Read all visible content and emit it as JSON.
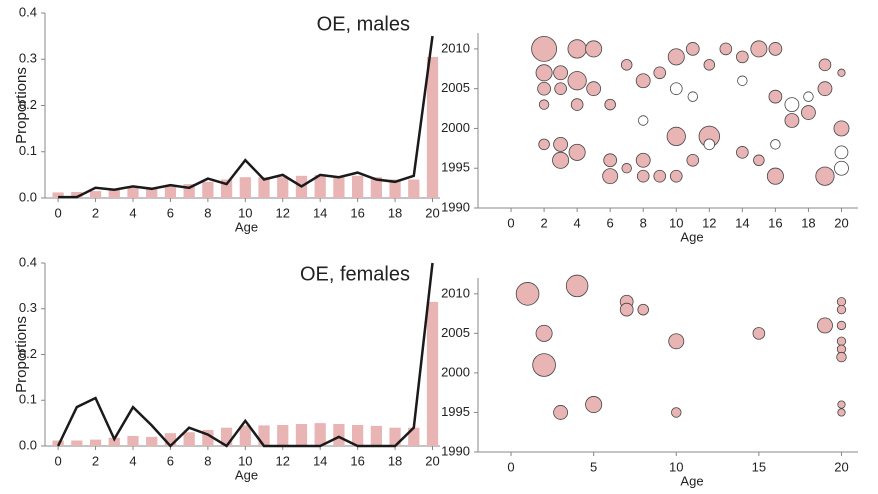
{
  "chart_data": [
    {
      "type": "bar",
      "annotation": "OE, males",
      "xlabel": "Age",
      "ylabel": "Proportions",
      "x": [
        0,
        1,
        2,
        3,
        4,
        5,
        6,
        7,
        8,
        9,
        10,
        11,
        12,
        13,
        14,
        15,
        16,
        17,
        18,
        19,
        20
      ],
      "series": [
        {
          "mark": "bar",
          "color": "#e8b4b4",
          "values": [
            0.012,
            0.013,
            0.015,
            0.02,
            0.025,
            0.022,
            0.028,
            0.03,
            0.035,
            0.04,
            0.045,
            0.045,
            0.045,
            0.048,
            0.05,
            0.045,
            0.048,
            0.045,
            0.04,
            0.04,
            0.305
          ]
        },
        {
          "mark": "line",
          "color": "#1a1a1a",
          "values": [
            0.002,
            0.002,
            0.022,
            0.018,
            0.025,
            0.02,
            0.028,
            0.022,
            0.042,
            0.03,
            0.082,
            0.04,
            0.05,
            0.025,
            0.05,
            0.045,
            0.055,
            0.04,
            0.035,
            0.048,
            0.35
          ]
        }
      ],
      "xlim": [
        -0.7,
        20.4
      ],
      "xticks": [
        0,
        2,
        4,
        6,
        8,
        10,
        12,
        14,
        16,
        18,
        20
      ],
      "ylim": [
        0,
        0.4
      ],
      "yticks": [
        {
          "value": 0,
          "label": "0.0"
        },
        0.1,
        0.2,
        0.3,
        0.4
      ]
    },
    {
      "type": "scatter",
      "xlabel": "Age",
      "series": [
        {
          "color": "#e8b4b4",
          "x": [
            2,
            4,
            5,
            2,
            3,
            4,
            2,
            3,
            5,
            2,
            4,
            6,
            2,
            3,
            3,
            4,
            6,
            6,
            7,
            8,
            8,
            9,
            10,
            10,
            10,
            11,
            12,
            12,
            13,
            14,
            15,
            16,
            16,
            17,
            18,
            19,
            19,
            20,
            7,
            8,
            9,
            11,
            14,
            15,
            16,
            19,
            20
          ],
          "y": [
            2010,
            2010,
            2010,
            2007,
            2007,
            2006,
            2005,
            2005,
            2005,
            2003,
            2003,
            2003,
            1998,
            1998,
            1996,
            1997,
            1994,
            1996,
            1995,
            1994,
            1996,
            1994,
            1994,
            1999,
            2009,
            2010,
            1999,
            2008,
            2010,
            2009,
            2010,
            2010,
            1994,
            2001,
            2002,
            1994,
            2008,
            2000,
            2008,
            2006,
            2007,
            1996,
            1997,
            1996,
            2004,
            2005,
            2007
          ],
          "sizes": [
            1,
            0.7,
            0.6,
            0.6,
            0.5,
            0.7,
            0.45,
            0.4,
            0.5,
            0.3,
            0.4,
            0.35,
            0.35,
            0.5,
            0.6,
            0.6,
            0.55,
            0.45,
            0.3,
            0.4,
            0.5,
            0.4,
            0.4,
            0.7,
            0.6,
            0.45,
            0.8,
            0.35,
            0.4,
            0.4,
            0.6,
            0.45,
            0.6,
            0.5,
            0.5,
            0.7,
            0.4,
            0.55,
            0.35,
            0.5,
            0.4,
            0.4,
            0.4,
            0.35,
            0.45,
            0.5,
            0.2
          ]
        },
        {
          "color": "#ffffff",
          "x": [
            17,
            20,
            20,
            10,
            12,
            16,
            14,
            18,
            8,
            11
          ],
          "y": [
            2003,
            1995,
            1997,
            2005,
            1998,
            1998,
            2006,
            2004,
            2001,
            2004
          ],
          "sizes": [
            0.5,
            0.5,
            0.45,
            0.4,
            0.35,
            0.3,
            0.3,
            0.3,
            0.3,
            0.3
          ]
        }
      ],
      "xlim": [
        -2,
        21
      ],
      "xticks": [
        0,
        2,
        4,
        6,
        8,
        10,
        12,
        14,
        16,
        18,
        20
      ],
      "ylim": [
        1990,
        2012
      ],
      "yticks": [
        1990,
        1995,
        2000,
        2005,
        2010
      ]
    },
    {
      "type": "bar",
      "annotation": "OE, females",
      "xlabel": "Age",
      "ylabel": "Proportions",
      "x": [
        0,
        1,
        2,
        3,
        4,
        5,
        6,
        7,
        8,
        9,
        10,
        11,
        12,
        13,
        14,
        15,
        16,
        17,
        18,
        19,
        20
      ],
      "series": [
        {
          "mark": "bar",
          "color": "#e8b4b4",
          "values": [
            0.012,
            0.012,
            0.014,
            0.018,
            0.022,
            0.02,
            0.028,
            0.03,
            0.035,
            0.04,
            0.045,
            0.045,
            0.046,
            0.048,
            0.05,
            0.048,
            0.046,
            0.044,
            0.04,
            0.04,
            0.315
          ]
        },
        {
          "mark": "line",
          "color": "#1a1a1a",
          "values": [
            0,
            0.085,
            0.105,
            0.015,
            0.085,
            0.045,
            0,
            0.04,
            0.025,
            0,
            0.055,
            0,
            0,
            0,
            0,
            0.02,
            0,
            0,
            0,
            0.04,
            0.4
          ]
        }
      ],
      "xlim": [
        -0.7,
        20.4
      ],
      "xticks": [
        0,
        2,
        4,
        6,
        8,
        10,
        12,
        14,
        16,
        18,
        20
      ],
      "ylim": [
        0,
        0.4
      ],
      "yticks": [
        {
          "value": 0,
          "label": "0.0"
        },
        0.1,
        0.2,
        0.3,
        0.4
      ]
    },
    {
      "type": "scatter",
      "xlabel": "Age",
      "series": [
        {
          "color": "#e8b4b4",
          "x": [
            1,
            4,
            2,
            2,
            3,
            5,
            7,
            7,
            8,
            10,
            10,
            15,
            19,
            20,
            20,
            20,
            20,
            20,
            20,
            20,
            20
          ],
          "y": [
            2010,
            2011,
            2001,
            2005,
            1995,
            1996,
            2009,
            2008,
            2008,
            2004,
            1995,
            2005,
            2006,
            2009,
            2008,
            2006,
            2004,
            2003,
            2002,
            1996,
            1995
          ],
          "sizes": [
            0.9,
            0.85,
            0.9,
            0.6,
            0.5,
            0.6,
            0.45,
            0.45,
            0.35,
            0.55,
            0.3,
            0.4,
            0.55,
            0.25,
            0.25,
            0.25,
            0.25,
            0.25,
            0.3,
            0.2,
            0.2
          ]
        }
      ],
      "xlim": [
        -2,
        21
      ],
      "xticks": [
        0,
        5,
        10,
        15,
        20
      ],
      "ylim": [
        1990,
        2012
      ],
      "yticks": [
        1990,
        1995,
        2000,
        2005,
        2010
      ]
    }
  ]
}
